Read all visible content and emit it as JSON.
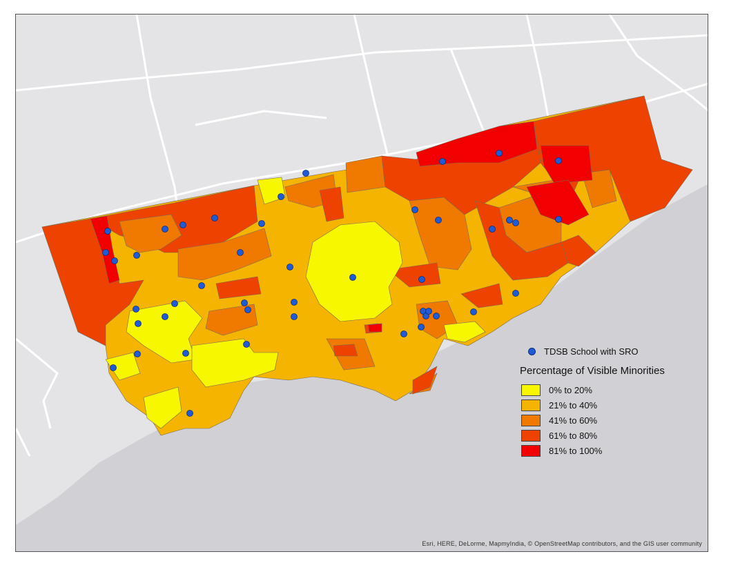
{
  "map": {
    "attribution": "Esri, HERE, DeLorme, MapmyIndia, © OpenStreetMap contributors, and the GIS user community",
    "colors": {
      "land": "#e4e4e6",
      "water": "#d0d0d5",
      "roads": "#ffffff",
      "school_point": "#1f5bd6"
    }
  },
  "legend": {
    "point_layer_label": "TDSB School with SRO",
    "heading": "Percentage of Visible Minorities",
    "classes": [
      {
        "label": "0% to 20%",
        "color": "#f7f700"
      },
      {
        "label": "21% to 40%",
        "color": "#f4b400"
      },
      {
        "label": "41% to 60%",
        "color": "#f07a00"
      },
      {
        "label": "61% to 80%",
        "color": "#ee4200"
      },
      {
        "label": "81% to 100%",
        "color": "#f20000"
      }
    ]
  }
}
